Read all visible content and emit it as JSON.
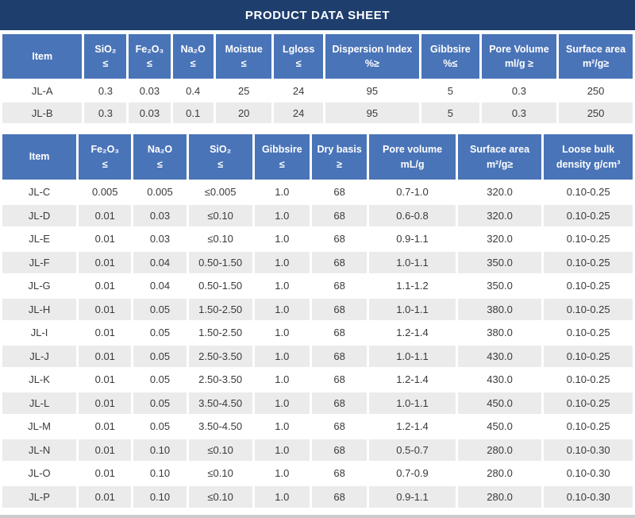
{
  "title": "PRODUCT DATA SHEET",
  "colors": {
    "title_bg": "#1E3E6E",
    "header_bg": "#4A74B8",
    "row_alt_bg": "#EBEBEB",
    "text_dark": "#3A3A3A"
  },
  "tables": [
    {
      "name": "spec-table-top",
      "columns": [
        {
          "label": "Item",
          "sub": "",
          "width": 13.1
        },
        {
          "label": "SiO₂",
          "sub": "≤",
          "width": 6.9
        },
        {
          "label": "Fe₂O₃",
          "sub": "≤",
          "width": 6.8
        },
        {
          "label": "Na₂O",
          "sub": "≤",
          "width": 6.7
        },
        {
          "label": "Moistue",
          "sub": "≤",
          "width": 9.2
        },
        {
          "label": "Lgloss",
          "sub": "≤",
          "width": 8.0
        },
        {
          "label": "Dispersion Index",
          "sub": "%≥",
          "width": 15.4
        },
        {
          "label": "Gibbsire",
          "sub": "%≤",
          "width": 9.5
        },
        {
          "label": "Pore Volume",
          "sub": "ml/g ≥",
          "width": 12.3
        },
        {
          "label": "Surface area",
          "sub": "m²/g≥",
          "width": 12.1
        }
      ],
      "rows": [
        [
          "JL-A",
          "0.3",
          "0.03",
          "0.4",
          "25",
          "24",
          "95",
          "5",
          "0.3",
          "250"
        ],
        [
          "JL-B",
          "0.3",
          "0.03",
          "0.1",
          "20",
          "24",
          "95",
          "5",
          "0.3",
          "250"
        ]
      ]
    },
    {
      "name": "spec-table-bottom",
      "columns": [
        {
          "label": "Item",
          "sub": "",
          "width": 12.1
        },
        {
          "label": "Fe₂O₃",
          "sub": "≤",
          "width": 8.6
        },
        {
          "label": "Na₂O",
          "sub": "≤",
          "width": 8.6
        },
        {
          "label": "SiO₂",
          "sub": "≤",
          "width": 10.4
        },
        {
          "label": "Gibbsire",
          "sub": "≤",
          "width": 9.0
        },
        {
          "label": "Dry basis",
          "sub": "≥",
          "width": 9.0
        },
        {
          "label": "Pore volume",
          "sub": "mL/g",
          "width": 14.1
        },
        {
          "label": "Surface area",
          "sub": "m²/g≥",
          "width": 13.7
        },
        {
          "label": "Loose bulk",
          "sub": "density g/cm³",
          "width": 14.5
        }
      ],
      "rows": [
        [
          "JL-C",
          "0.005",
          "0.005",
          "≤0.005",
          "1.0",
          "68",
          "0.7-1.0",
          "320.0",
          "0.10-0.25"
        ],
        [
          "JL-D",
          "0.01",
          "0.03",
          "≤0.10",
          "1.0",
          "68",
          "0.6-0.8",
          "320.0",
          "0.10-0.25"
        ],
        [
          "JL-E",
          "0.01",
          "0.03",
          "≤0.10",
          "1.0",
          "68",
          "0.9-1.1",
          "320.0",
          "0.10-0.25"
        ],
        [
          "JL-F",
          "0.01",
          "0.04",
          "0.50-1.50",
          "1.0",
          "68",
          "1.0-1.1",
          "350.0",
          "0.10-0.25"
        ],
        [
          "JL-G",
          "0.01",
          "0.04",
          "0.50-1.50",
          "1.0",
          "68",
          "1.1-1.2",
          "350.0",
          "0.10-0.25"
        ],
        [
          "JL-H",
          "0.01",
          "0.05",
          "1.50-2.50",
          "1.0",
          "68",
          "1.0-1.1",
          "380.0",
          "0.10-0.25"
        ],
        [
          "JL-I",
          "0.01",
          "0.05",
          "1.50-2.50",
          "1.0",
          "68",
          "1.2-1.4",
          "380.0",
          "0.10-0.25"
        ],
        [
          "JL-J",
          "0.01",
          "0.05",
          "2.50-3.50",
          "1.0",
          "68",
          "1.0-1.1",
          "430.0",
          "0.10-0.25"
        ],
        [
          "JL-K",
          "0.01",
          "0.05",
          "2.50-3.50",
          "1.0",
          "68",
          "1.2-1.4",
          "430.0",
          "0.10-0.25"
        ],
        [
          "JL-L",
          "0.01",
          "0.05",
          "3.50-4.50",
          "1.0",
          "68",
          "1.0-1.1",
          "450.0",
          "0.10-0.25"
        ],
        [
          "JL-M",
          "0.01",
          "0.05",
          "3.50-4.50",
          "1.0",
          "68",
          "1.2-1.4",
          "450.0",
          "0.10-0.25"
        ],
        [
          "JL-N",
          "0.01",
          "0.10",
          "≤0.10",
          "1.0",
          "68",
          "0.5-0.7",
          "280.0",
          "0.10-0.30"
        ],
        [
          "JL-O",
          "0.01",
          "0.10",
          "≤0.10",
          "1.0",
          "68",
          "0.7-0.9",
          "280.0",
          "0.10-0.30"
        ],
        [
          "JL-P",
          "0.01",
          "0.10",
          "≤0.10",
          "1.0",
          "68",
          "0.9-1.1",
          "280.0",
          "0.10-0.30"
        ]
      ]
    }
  ]
}
